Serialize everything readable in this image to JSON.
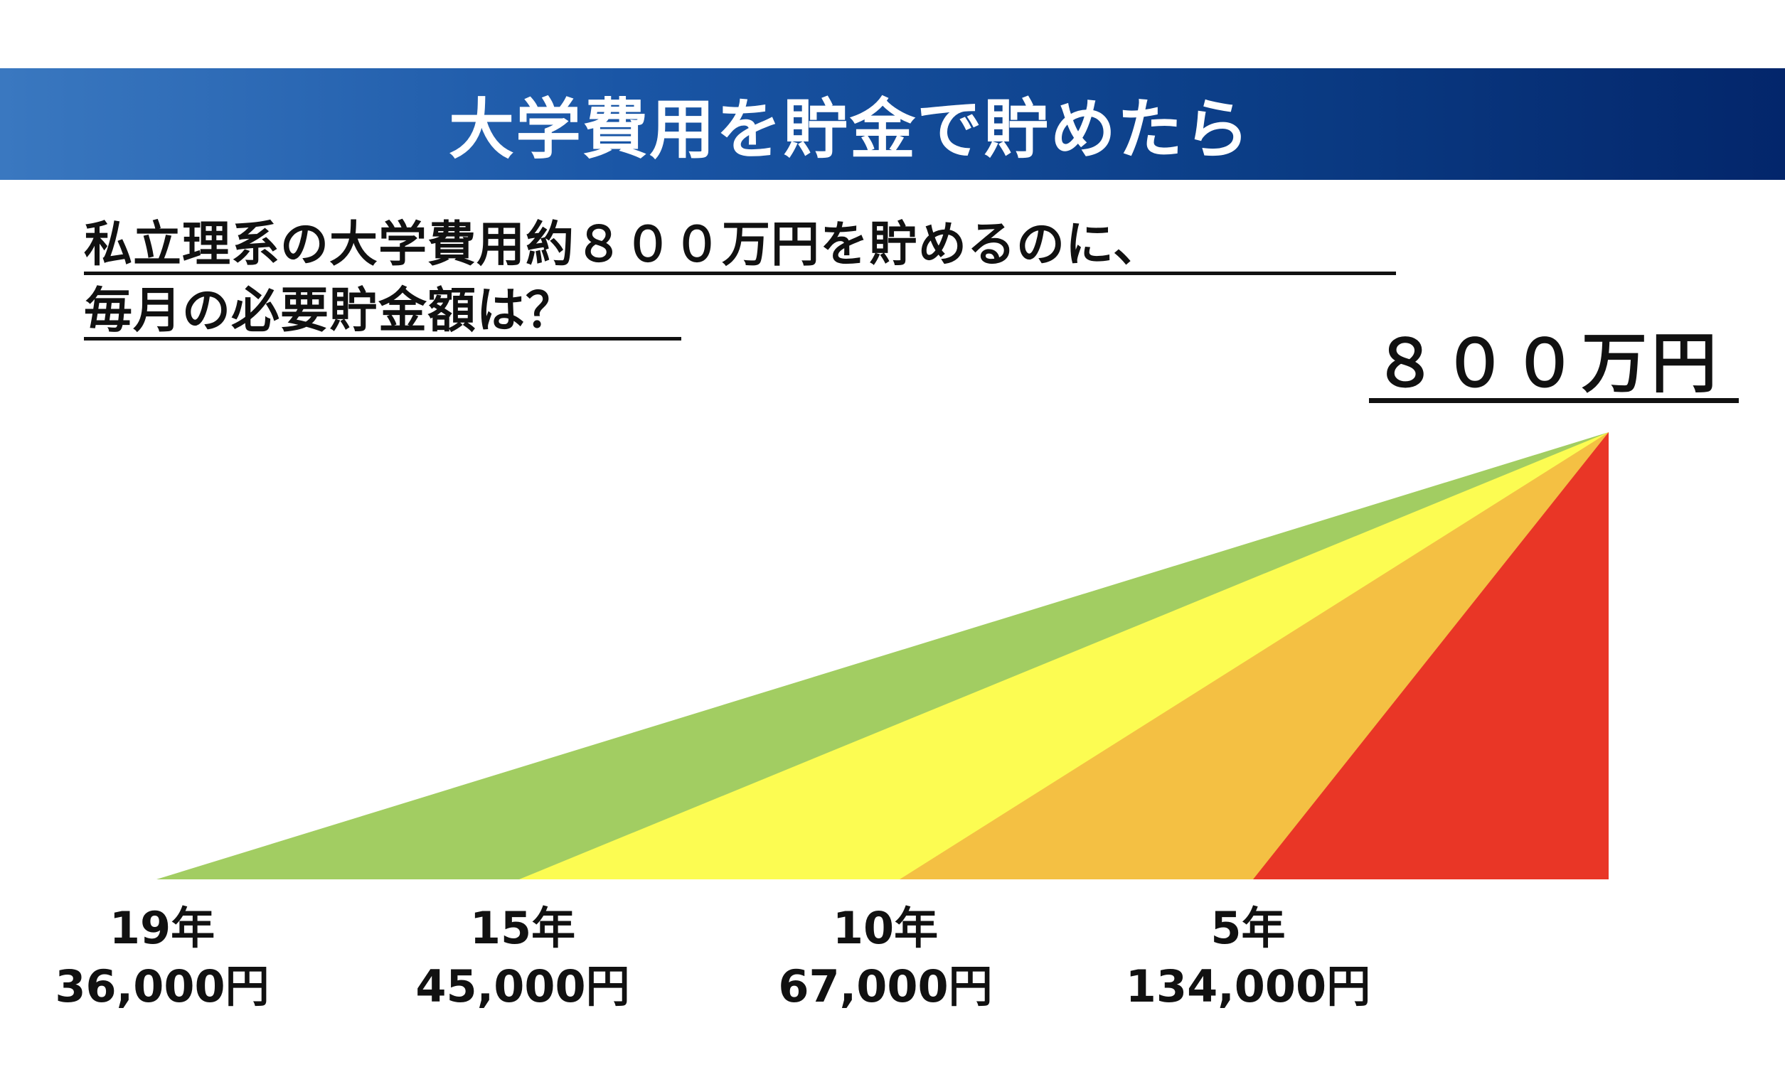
{
  "header": {
    "title": "大学費用を貯金で貯めたら"
  },
  "question": {
    "line1": "私立理系の大学費用約８００万円を貯めるのに、",
    "line2": "毎月の必要貯金額は？"
  },
  "goal_label": "８００万円",
  "colors": {
    "banner_start": "#3a78c0",
    "banner_end": "#03266b",
    "green": "#a2cd62",
    "yellow": "#fcfc52",
    "orange": "#f4c043",
    "red": "#e93626"
  },
  "chart_data": {
    "type": "area",
    "title": "",
    "target": "８００万円",
    "series": [
      {
        "years": "19年",
        "monthly": "36,000円",
        "color": "#a2cd62"
      },
      {
        "years": "15年",
        "monthly": "45,000円",
        "color": "#fcfc52"
      },
      {
        "years": "10年",
        "monthly": "67,000円",
        "color": "#f4c043"
      },
      {
        "years": "5年",
        "monthly": "134,000円",
        "color": "#e93626"
      }
    ]
  }
}
